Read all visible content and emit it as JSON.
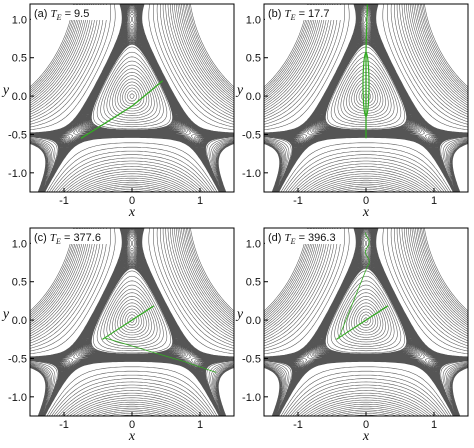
{
  "chart_data": {
    "type": "line",
    "description_layout": "2x2 grid of contour plots of a three-saddle potential with a green trajectory overlay",
    "colors": {
      "contour": "#555555",
      "trajectory": "#33aa22",
      "frame": "#000000"
    },
    "xlabel": "x",
    "ylabel": "y",
    "xlim": [
      -1.5,
      1.5
    ],
    "ylim": [
      -1.25,
      1.2
    ],
    "xticks": [
      -1,
      0,
      1
    ],
    "yticks": [
      -1.0,
      -0.5,
      0.0,
      0.5,
      1.0
    ],
    "panels": [
      {
        "tag": "(a)",
        "te_label": "9.5",
        "trajectory_kind": "diagonal",
        "trajectory_points": [
          [
            -0.75,
            -0.55
          ],
          [
            -0.55,
            -0.44
          ],
          [
            -0.3,
            -0.3
          ],
          [
            0,
            -0.13
          ],
          [
            0.25,
            0.05
          ],
          [
            0.45,
            0.2
          ]
        ]
      },
      {
        "tag": "(b)",
        "te_label": "17.7",
        "trajectory_kind": "vertical",
        "trajectory_points": [
          [
            0,
            -0.55
          ],
          [
            0,
            0
          ],
          [
            0,
            0.6
          ],
          [
            0.02,
            1.2
          ]
        ]
      },
      {
        "tag": "(c)",
        "te_label": "377.6",
        "trajectory_kind": "chaotic",
        "trajectory_points": []
      },
      {
        "tag": "(d)",
        "te_label": "396.3",
        "trajectory_kind": "chaotic",
        "trajectory_points": []
      }
    ]
  }
}
